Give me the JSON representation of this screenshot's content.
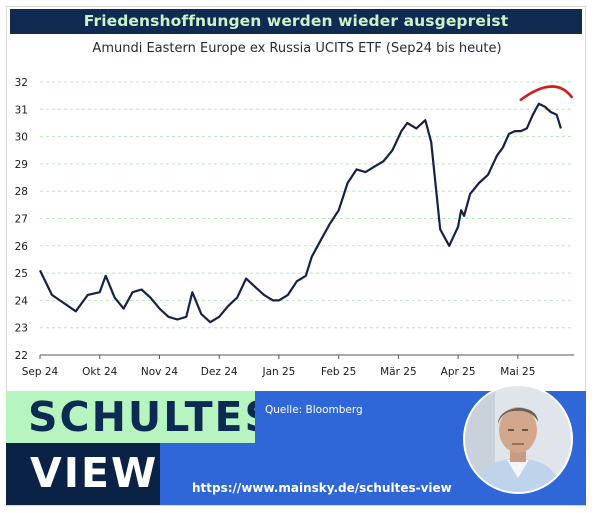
{
  "header": {
    "title": "Friedenshoffnungen werden wieder ausgepreist",
    "subtitle": "Amundi Eastern Europe ex Russia UCITS ETF (Sep24 bis heute)"
  },
  "chart_data": {
    "type": "line",
    "title": "Amundi Eastern Europe ex Russia UCITS ETF (Sep24 bis heute)",
    "xlabel": "",
    "ylabel": "",
    "ylim": [
      22,
      32
    ],
    "yticks": [
      "22",
      "23",
      "24",
      "25",
      "26",
      "27",
      "28",
      "29",
      "30",
      "31",
      "32"
    ],
    "categories": [
      "Sep 24",
      "Okt 24",
      "Nov 24",
      "Dez 24",
      "Jan 25",
      "Feb 25",
      "Mär 25",
      "Apr 25",
      "Mai 25"
    ],
    "grid": "horizontal dashed",
    "line_color": "#14224a",
    "annotation_color": "#cc1f1f",
    "x": [
      0,
      0.2,
      0.4,
      0.6,
      0.8,
      1.0,
      1.1,
      1.25,
      1.4,
      1.55,
      1.7,
      1.85,
      2.0,
      2.15,
      2.3,
      2.45,
      2.55,
      2.7,
      2.85,
      3.0,
      3.15,
      3.3,
      3.45,
      3.6,
      3.75,
      3.9,
      4.0,
      4.15,
      4.3,
      4.45,
      4.55,
      4.7,
      4.85,
      5.0,
      5.15,
      5.3,
      5.45,
      5.6,
      5.75,
      5.9,
      6.05,
      6.15,
      6.3,
      6.45,
      6.55,
      6.7,
      6.85,
      7.0,
      7.05,
      7.1,
      7.2,
      7.35,
      7.5,
      7.65,
      7.75,
      7.85,
      7.95,
      8.05,
      8.15,
      8.25,
      8.35,
      8.45,
      8.55,
      8.65,
      8.72
    ],
    "values": [
      25.1,
      24.2,
      23.9,
      23.6,
      24.2,
      24.3,
      24.9,
      24.1,
      23.7,
      24.3,
      24.4,
      24.1,
      23.7,
      23.4,
      23.3,
      23.4,
      24.3,
      23.5,
      23.2,
      23.4,
      23.8,
      24.1,
      24.8,
      24.5,
      24.2,
      24.0,
      24.0,
      24.2,
      24.7,
      24.9,
      25.6,
      26.2,
      26.8,
      27.3,
      28.3,
      28.8,
      28.7,
      28.9,
      29.1,
      29.5,
      30.2,
      30.5,
      30.3,
      30.6,
      29.8,
      26.6,
      26.0,
      26.7,
      27.3,
      27.1,
      27.9,
      28.3,
      28.6,
      29.3,
      29.6,
      30.1,
      30.2,
      30.2,
      30.3,
      30.8,
      31.2,
      31.1,
      30.9,
      30.8,
      30.3
    ],
    "series": [
      {
        "values_ref": "values"
      }
    ]
  },
  "branding": {
    "word1": "SCHULTES",
    "word2": "VIEW",
    "source": "Quelle: Bloomberg",
    "url": "https://www.mainsky.de/schultes-view",
    "colors": {
      "navy": "#0b2247",
      "mint": "#b7f5c0",
      "blue": "#2f67d8"
    }
  }
}
